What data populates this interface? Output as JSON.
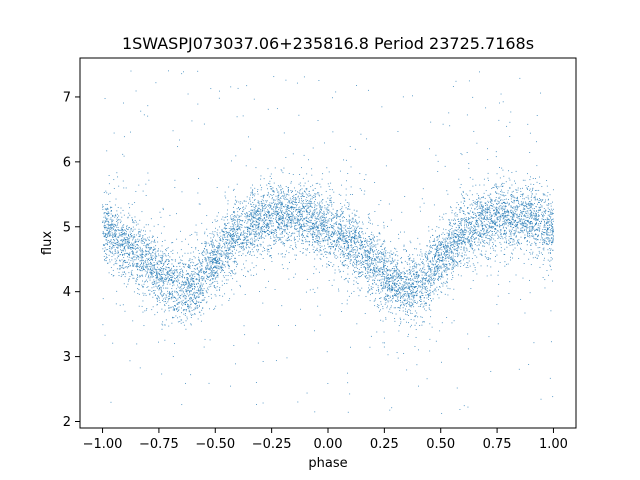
{
  "chart_data": {
    "type": "scatter",
    "title": "1SWASPJ073037.06+235816.8 Period 23725.7168s",
    "xlabel": "phase",
    "ylabel": "flux",
    "xlim": [
      -1.1,
      1.1
    ],
    "ylim": [
      1.9,
      7.6
    ],
    "xticks": [
      -1.0,
      -0.75,
      -0.5,
      -0.25,
      0.0,
      0.25,
      0.5,
      0.75,
      1.0
    ],
    "xtick_labels": [
      "−1.00",
      "−0.75",
      "−0.50",
      "−0.25",
      "0.00",
      "0.25",
      "0.50",
      "0.75",
      "1.00"
    ],
    "yticks": [
      2,
      3,
      4,
      5,
      6,
      7
    ],
    "ytick_labels": [
      "2",
      "3",
      "4",
      "5",
      "6",
      "7"
    ],
    "grid": false,
    "legend": "none",
    "point_color": "#1f77b4",
    "x_range_of_points": [
      -1.0,
      1.0
    ],
    "light_curve": {
      "phase": [
        -1.0,
        -0.9,
        -0.8,
        -0.7,
        -0.65,
        -0.6,
        -0.5,
        -0.4,
        -0.3,
        -0.2,
        -0.1,
        0.0,
        0.1,
        0.2,
        0.3,
        0.35,
        0.4,
        0.5,
        0.6,
        0.7,
        0.8,
        0.9,
        1.0
      ],
      "flux": [
        4.95,
        4.75,
        4.45,
        4.15,
        4.05,
        4.1,
        4.5,
        4.9,
        5.1,
        5.2,
        5.15,
        4.95,
        4.75,
        4.45,
        4.15,
        4.05,
        4.1,
        4.5,
        4.9,
        5.1,
        5.2,
        5.15,
        4.95
      ]
    },
    "scatter_spread": 0.25,
    "outlier_flux_range": [
      2.1,
      7.5
    ]
  }
}
